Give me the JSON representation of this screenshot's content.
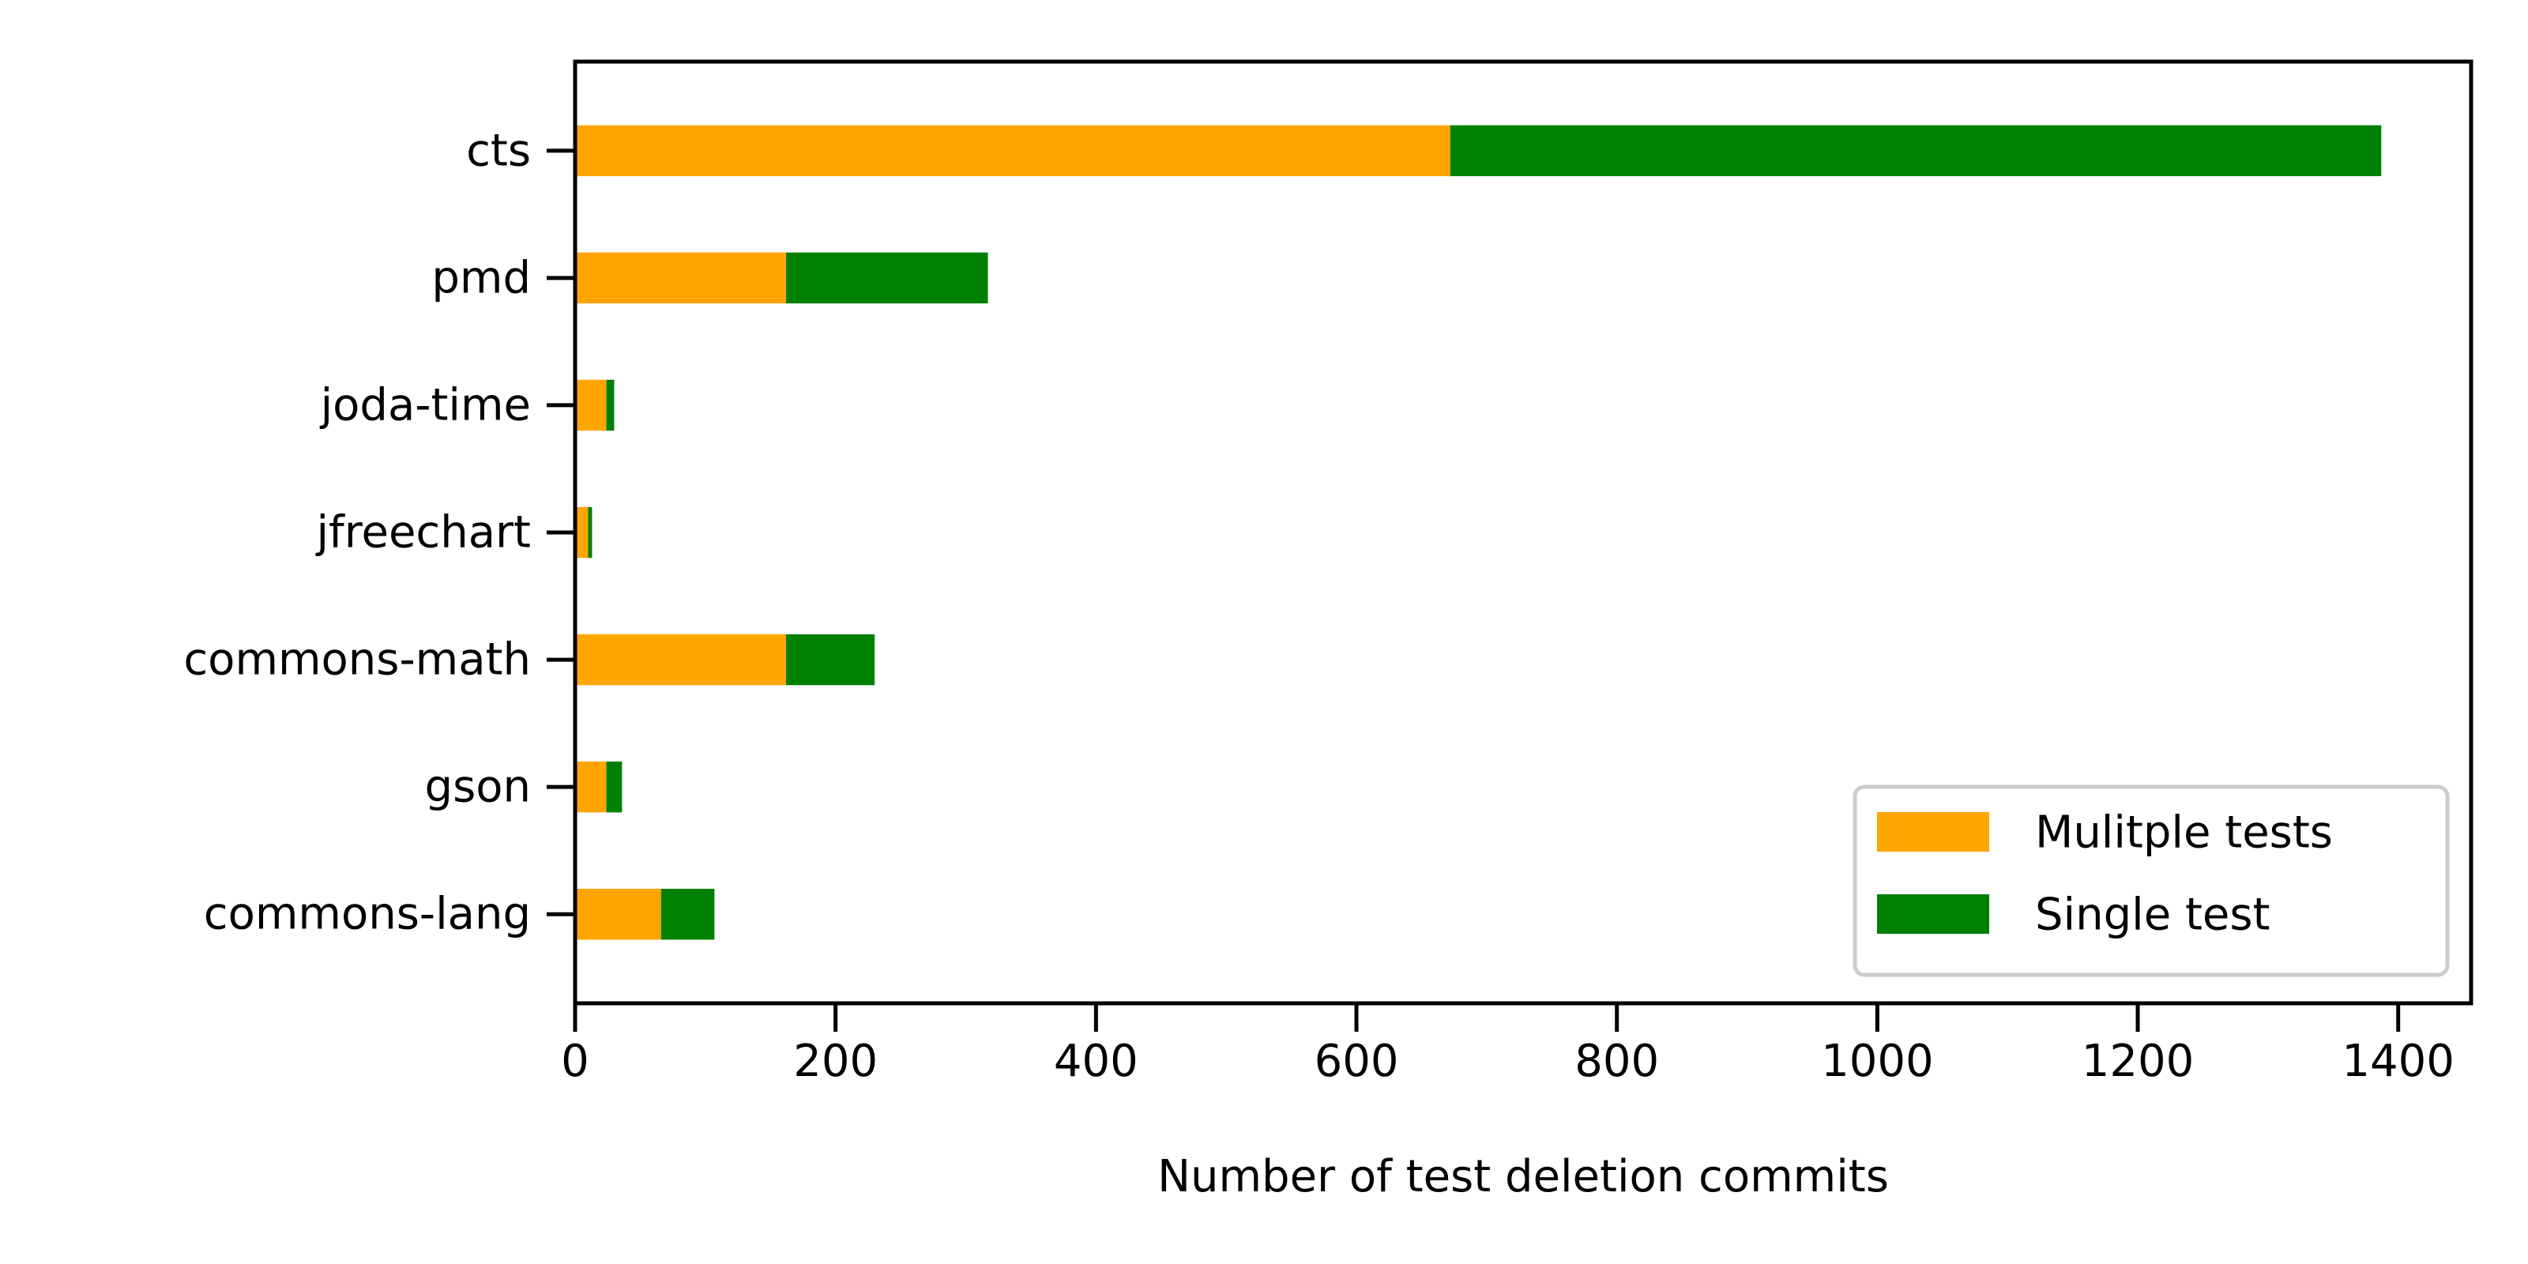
{
  "chart_data": {
    "type": "bar",
    "orientation": "horizontal",
    "stacked": true,
    "categories": [
      "cts",
      "pmd",
      "joda-time",
      "jfreechart",
      "commons-math",
      "gson",
      "commons-lang"
    ],
    "series": [
      {
        "name": "Mulitple tests",
        "color": "#ffa500",
        "values": [
          672,
          162,
          24,
          10,
          162,
          24,
          66
        ]
      },
      {
        "name": "Single test",
        "color": "#008000",
        "values": [
          715,
          155,
          6,
          3,
          68,
          12,
          41
        ]
      }
    ],
    "xlabel": "Number of test deletion commits",
    "ylabel": "",
    "xlim": [
      0,
      1456
    ],
    "xticks": [
      0,
      200,
      400,
      600,
      800,
      1000,
      1200,
      1400
    ],
    "xtick_labels": [
      "0",
      "200",
      "400",
      "600",
      "800",
      "1000",
      "1200",
      "1400"
    ],
    "grid": false,
    "legend_position": "lower right"
  }
}
